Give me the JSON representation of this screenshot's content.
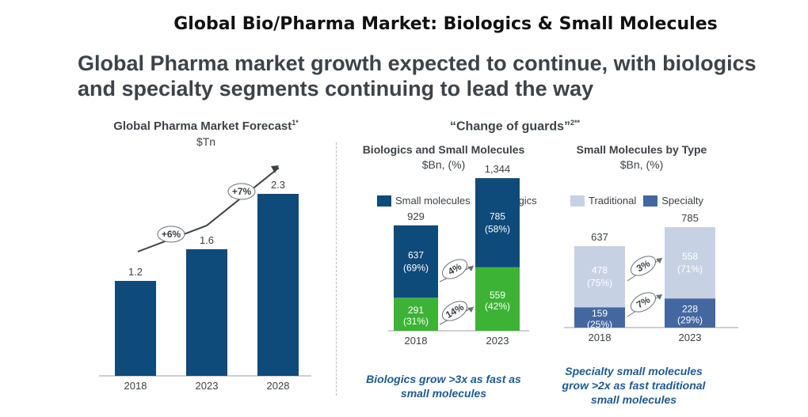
{
  "page_title": "Global Bio/Pharma Market: Biologics & Small Molecules",
  "headline_line1": "Global Pharma market growth expected to continue, with biologics",
  "headline_line2": "and specialty segments continuing to lead the way",
  "colors": {
    "dark_blue": "#0e4a7a",
    "green": "#3db335",
    "light_blue": "#c7d1e4",
    "mid_blue": "#4567a0"
  },
  "chart_data": [
    {
      "type": "bar",
      "title": "Global Pharma Market Forecast",
      "title_sup": "1*",
      "ylabel": "$Tn",
      "categories": [
        "2018",
        "2023",
        "2028"
      ],
      "values": [
        1.2,
        1.6,
        2.3
      ],
      "value_labels": [
        "1.2",
        "1.6",
        "2.3"
      ],
      "ylim": [
        0,
        2.6
      ],
      "annotations": [
        "+6%",
        "+7%"
      ]
    },
    {
      "type": "bar",
      "stacked": true,
      "group_title": "“Change of guards”",
      "group_title_sup": "2**",
      "title": "Biologics and Small Molecules",
      "ylabel": "$Bn, (%)",
      "categories": [
        "2018",
        "2023"
      ],
      "totals": [
        "929",
        "1,344"
      ],
      "series": [
        {
          "name": "Biologics",
          "values": [
            291,
            559
          ],
          "labels": [
            "291",
            "559"
          ],
          "pct": [
            "(31%)",
            "(42%)"
          ]
        },
        {
          "name": "Small molecules",
          "values": [
            637,
            785
          ],
          "labels": [
            "637",
            "785"
          ],
          "pct": [
            "(69%)",
            "(58%)"
          ]
        }
      ],
      "growth": [
        "4%",
        "14%"
      ],
      "caption_line1": "Biologics grow >3x as fast as",
      "caption_line2": "small molecules"
    },
    {
      "type": "bar",
      "stacked": true,
      "title": "Small Molecules by Type",
      "ylabel": "$Bn, (%)",
      "categories": [
        "2018",
        "2023"
      ],
      "totals": [
        "637",
        "785"
      ],
      "series": [
        {
          "name": "Specialty",
          "values": [
            159,
            228
          ],
          "labels": [
            "159",
            "228"
          ],
          "pct": [
            "(25%)",
            "(29%)"
          ]
        },
        {
          "name": "Traditional",
          "values": [
            478,
            558
          ],
          "labels": [
            "478",
            "558"
          ],
          "pct": [
            "(75%)",
            "(71%)"
          ]
        }
      ],
      "growth": [
        "3%",
        "7%"
      ],
      "caption_line1": "Specialty small molecules",
      "caption_line2": "grow >2x as fast traditional",
      "caption_line3": "small molecules"
    }
  ]
}
